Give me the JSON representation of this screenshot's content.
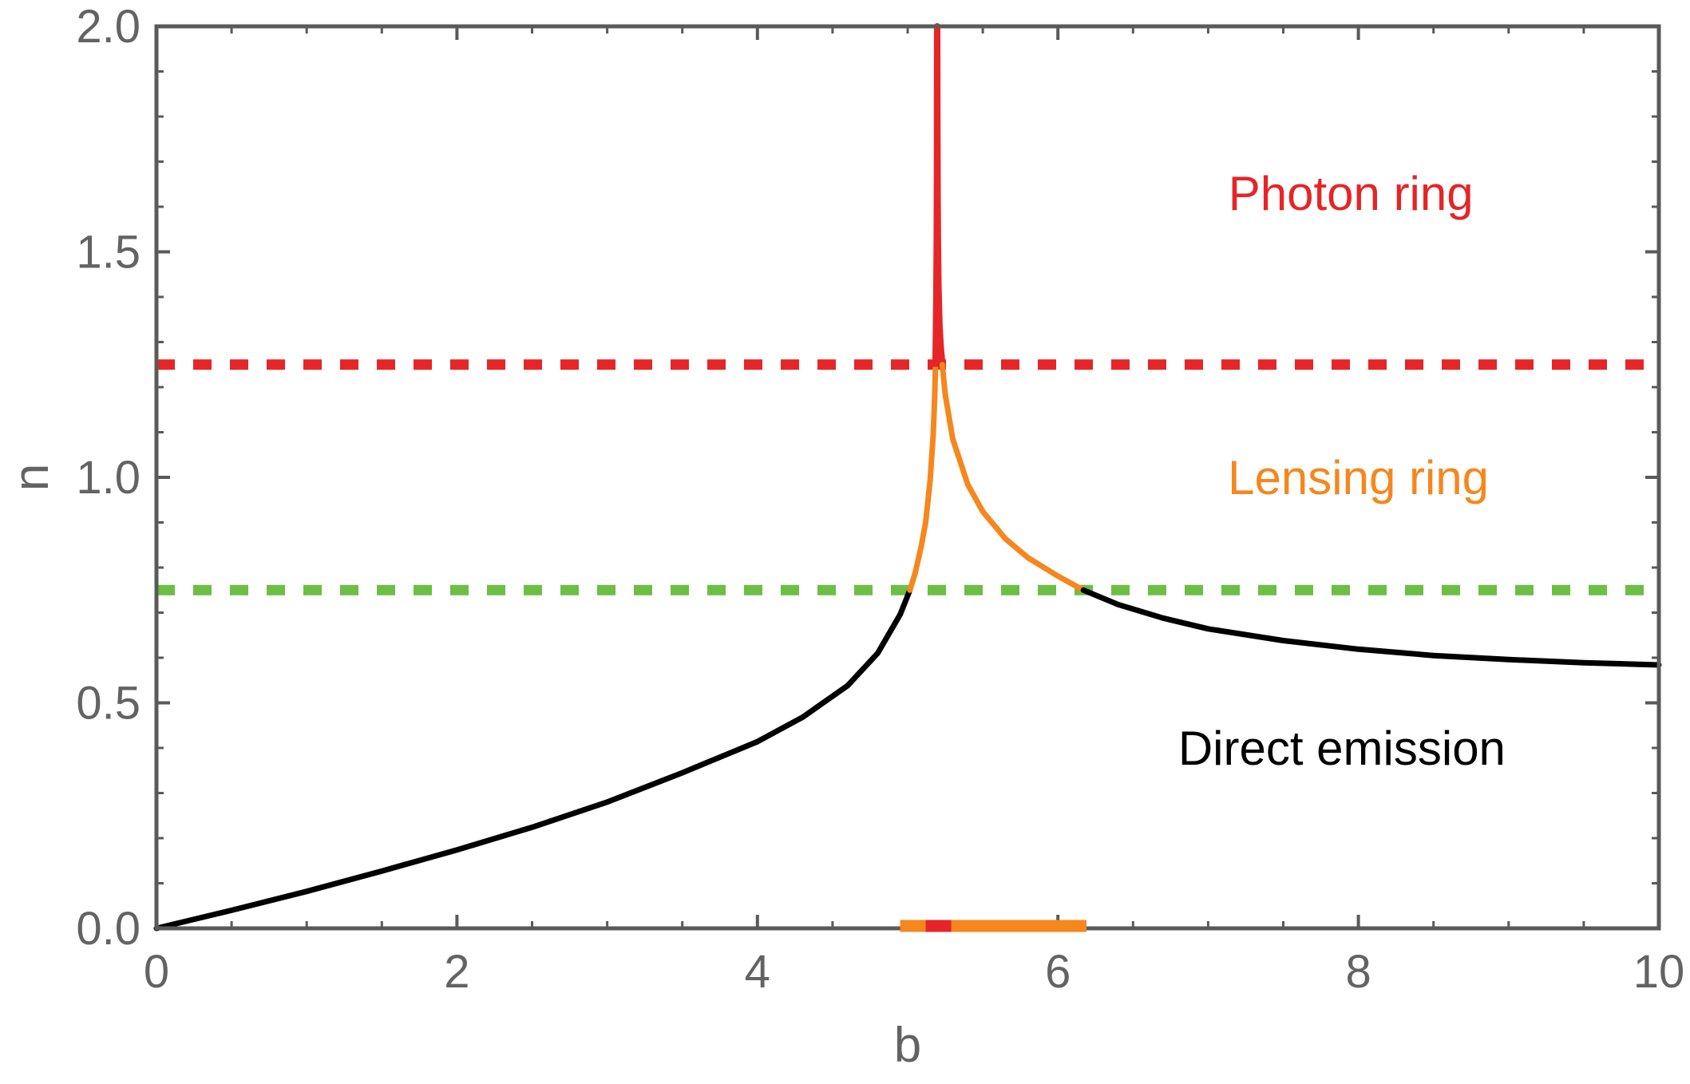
{
  "chart_data": {
    "type": "line",
    "title": "",
    "xlabel": "b",
    "ylabel": "n",
    "xlim": [
      0,
      10
    ],
    "ylim": [
      0,
      2
    ],
    "grid": false,
    "frame": true,
    "legend_position": "none",
    "x_ticks": {
      "values": [
        0,
        2,
        4,
        6,
        8,
        10
      ],
      "labels": [
        "0",
        "2",
        "4",
        "6",
        "8",
        "10"
      ],
      "minor_step": 0.5
    },
    "y_ticks": {
      "values": [
        0,
        0.5,
        1,
        1.5,
        2
      ],
      "labels": [
        "0.0",
        "0.5",
        "1.0",
        "1.5",
        "2.0"
      ],
      "minor_step": 0.1
    },
    "colors": {
      "direct_emission": "#000000",
      "lensing_ring": "#f5871e",
      "photon_ring": "#e52527",
      "lensing_threshold": "#6cbe45",
      "frame": "#5a5a5a",
      "tick_label": "#636363"
    },
    "reference_lines": [
      {
        "name": "photon-ring-threshold",
        "n": 1.25,
        "color": "#e52527",
        "dash": [
          23,
          23
        ],
        "width": 13
      },
      {
        "name": "lensing-ring-threshold",
        "n": 0.75,
        "color": "#6cbe45",
        "dash": [
          23,
          23
        ],
        "width": 13
      }
    ],
    "series": [
      {
        "name": "direct-emission-left",
        "color": "#000000",
        "width": 7,
        "points": [
          [
            0,
            0
          ],
          [
            0.5,
            0.04
          ],
          [
            1,
            0.082
          ],
          [
            1.5,
            0.127
          ],
          [
            2,
            0.174
          ],
          [
            2.5,
            0.224
          ],
          [
            3,
            0.28
          ],
          [
            3.5,
            0.345
          ],
          [
            4,
            0.414
          ],
          [
            4.3,
            0.468
          ],
          [
            4.6,
            0.538
          ],
          [
            4.8,
            0.61
          ],
          [
            4.95,
            0.696
          ],
          [
            5.015,
            0.75
          ]
        ]
      },
      {
        "name": "lensing-ring-left",
        "color": "#f5871e",
        "width": 7,
        "points": [
          [
            5.015,
            0.75
          ],
          [
            5.05,
            0.788
          ],
          [
            5.09,
            0.846
          ],
          [
            5.12,
            0.901
          ],
          [
            5.15,
            0.994
          ],
          [
            5.17,
            1.095
          ],
          [
            5.18,
            1.18
          ],
          [
            5.185,
            1.245
          ]
        ]
      },
      {
        "name": "photon-ring-spike",
        "color": "#e52527",
        "width": 8,
        "points": [
          [
            5.185,
            1.245
          ],
          [
            5.188,
            1.32
          ],
          [
            5.191,
            1.4
          ],
          [
            5.1935,
            1.52
          ],
          [
            5.195,
            1.68
          ],
          [
            5.1958,
            1.85
          ],
          [
            5.196,
            2.0
          ],
          [
            5.1966,
            2.0
          ],
          [
            5.1975,
            1.8
          ],
          [
            5.199,
            1.64
          ],
          [
            5.2015,
            1.52
          ],
          [
            5.205,
            1.42
          ],
          [
            5.212,
            1.335
          ],
          [
            5.22,
            1.29
          ],
          [
            5.2305,
            1.25
          ]
        ]
      },
      {
        "name": "lensing-ring-right",
        "color": "#f5871e",
        "width": 7,
        "points": [
          [
            5.2305,
            1.25
          ],
          [
            5.25,
            1.183
          ],
          [
            5.3,
            1.085
          ],
          [
            5.4,
            0.984
          ],
          [
            5.5,
            0.924
          ],
          [
            5.65,
            0.864
          ],
          [
            5.8,
            0.822
          ],
          [
            6.0,
            0.781
          ],
          [
            6.17,
            0.75
          ]
        ]
      },
      {
        "name": "direct-emission-right",
        "color": "#000000",
        "width": 7,
        "points": [
          [
            6.17,
            0.75
          ],
          [
            6.4,
            0.718
          ],
          [
            6.7,
            0.688
          ],
          [
            7.0,
            0.664
          ],
          [
            7.5,
            0.638
          ],
          [
            8.0,
            0.619
          ],
          [
            8.5,
            0.605
          ],
          [
            9.0,
            0.596
          ],
          [
            9.5,
            0.589
          ],
          [
            10,
            0.584
          ]
        ]
      }
    ],
    "axis_bands": [
      {
        "name": "lensing-ring-band",
        "color": "#f5871e",
        "b_range": [
          4.95,
          6.19
        ],
        "n": 0,
        "thickness": 15
      },
      {
        "name": "photon-ring-band",
        "color": "#e52527",
        "b_range": [
          5.12,
          5.29
        ],
        "n": 0,
        "thickness": 15
      }
    ],
    "regions": [
      {
        "label": "Photon ring",
        "color": "#e52527",
        "x": 7.95,
        "y": 1.63
      },
      {
        "label": "Lensing ring",
        "color": "#f5871e",
        "x": 8.0,
        "y": 1.0
      },
      {
        "label": "Direct emission",
        "color": "#000000",
        "x": 7.89,
        "y": 0.4
      }
    ]
  }
}
